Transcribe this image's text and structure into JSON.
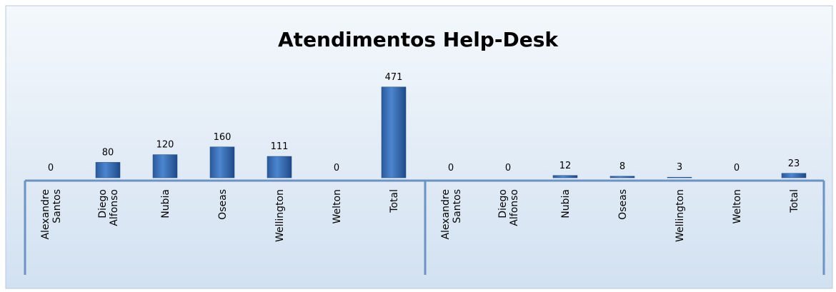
{
  "chart_data": {
    "type": "bar",
    "title": "Atendimentos Help-Desk",
    "categories": [
      "Alexandre Santos",
      "Diego Alfonso",
      "Nubia",
      "Oseas",
      "Wellington",
      "Welton",
      "Total",
      "Alexandre Santos",
      "Diego Alfonso",
      "Nubia",
      "Oseas",
      "Wellington",
      "Welton",
      "Total"
    ],
    "values": [
      0,
      80,
      120,
      160,
      111,
      0,
      471,
      0,
      0,
      12,
      8,
      3,
      0,
      23
    ],
    "color": "#3a6fb8",
    "ylim": [
      0,
      500
    ]
  }
}
